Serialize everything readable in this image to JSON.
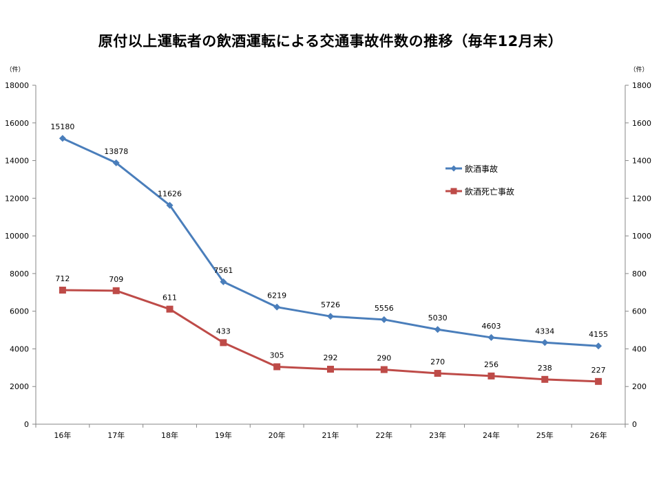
{
  "chart_data": {
    "type": "line",
    "title": "原付以上運転者の飲酒運転による交通事故件数の推移（毎年12月末）",
    "y_unit_left": "（件）",
    "y_unit_right": "（件）",
    "categories": [
      "16年",
      "17年",
      "18年",
      "19年",
      "20年",
      "21年",
      "22年",
      "23年",
      "24年",
      "25年",
      "26年"
    ],
    "left_axis": {
      "ylim": [
        0,
        18000
      ],
      "ticks": [
        "0",
        "2000",
        "4000",
        "6000",
        "8000",
        "10000",
        "12000",
        "14000",
        "16000",
        "18000"
      ]
    },
    "right_axis": {
      "ylim": [
        0,
        1800
      ],
      "ticks": [
        "0",
        "200",
        "400",
        "600",
        "800",
        "1000",
        "1200",
        "1400",
        "1600",
        "1800"
      ]
    },
    "series": [
      {
        "name": "飲酒事故",
        "axis": "left",
        "color": "#4a7ebb",
        "marker": "diamond",
        "values": [
          15180,
          13878,
          11626,
          7561,
          6219,
          5726,
          5556,
          5030,
          4603,
          4334,
          4155
        ],
        "labels": [
          "15180",
          "13878",
          "11626",
          "7561",
          "6219",
          "5726",
          "5556",
          "5030",
          "4603",
          "4334",
          "4155"
        ]
      },
      {
        "name": "飲酒死亡事故",
        "axis": "right",
        "color": "#be4b48",
        "marker": "square",
        "values": [
          712,
          709,
          611,
          433,
          305,
          292,
          290,
          270,
          256,
          238,
          227
        ],
        "labels": [
          "712",
          "709",
          "611",
          "433",
          "305",
          "292",
          "290",
          "270",
          "256",
          "238",
          "227"
        ]
      }
    ],
    "grid": false,
    "legend_position": "right"
  }
}
